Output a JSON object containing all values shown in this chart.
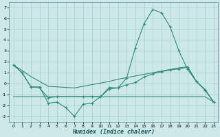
{
  "xlabel": "Humidex (Indice chaleur)",
  "x_values": [
    0,
    1,
    2,
    3,
    4,
    5,
    6,
    7,
    8,
    9,
    10,
    11,
    12,
    13,
    14,
    15,
    16,
    17,
    18,
    19,
    20,
    21,
    22,
    23
  ],
  "line1_y": [
    1.7,
    1.0,
    -0.3,
    -0.3,
    -1.8,
    -1.7,
    -2.2,
    -3.0,
    -1.9,
    -1.8,
    -1.2,
    -0.35,
    -0.4,
    0.5,
    3.3,
    5.5,
    6.8,
    6.5,
    5.2,
    3.0,
    1.3,
    0.2,
    -0.6,
    -1.7
  ],
  "line2_x": [
    0,
    1,
    2,
    3,
    4,
    5,
    8,
    9,
    10,
    11,
    12,
    13,
    14,
    15,
    16,
    17,
    18,
    19,
    20,
    21,
    22,
    23
  ],
  "line2_y": [
    1.7,
    1.0,
    -0.3,
    -0.4,
    -1.3,
    -1.2,
    -1.2,
    -1.2,
    -1.2,
    -0.5,
    -0.4,
    -0.1,
    0.1,
    0.6,
    0.9,
    1.1,
    1.25,
    1.35,
    1.5,
    0.2,
    -0.55,
    -1.7
  ],
  "line3_x": [
    0,
    1,
    2,
    3,
    4,
    5,
    6,
    7,
    8,
    9,
    10,
    11,
    12,
    13,
    14,
    15,
    16,
    17,
    18,
    19,
    20,
    21,
    22,
    23
  ],
  "line3_y": [
    -1.2,
    -1.2,
    -1.2,
    -1.2,
    -1.2,
    -1.2,
    -1.2,
    -1.2,
    -1.2,
    -1.2,
    -1.2,
    -1.2,
    -1.2,
    -1.2,
    -1.2,
    -1.2,
    -1.2,
    -1.2,
    -1.2,
    -1.2,
    -1.2,
    -1.2,
    -1.2,
    -1.7
  ],
  "line4_x": [
    0,
    1,
    2,
    3,
    4,
    5,
    6,
    7,
    8,
    9,
    10,
    11,
    12,
    13,
    14,
    15,
    16,
    17,
    18,
    19,
    20,
    21,
    22,
    23
  ],
  "line4_y": [
    1.7,
    1.2,
    0.65,
    0.2,
    -0.25,
    -0.3,
    -0.35,
    -0.4,
    -0.25,
    -0.1,
    0.05,
    0.2,
    0.4,
    0.55,
    0.7,
    0.85,
    1.0,
    1.15,
    1.3,
    1.45,
    1.55,
    0.2,
    -0.55,
    -1.7
  ],
  "line_color": "#2e8b74",
  "bg_color": "#cce8e8",
  "grid_color": "#aacccc",
  "ylim": [
    -3.5,
    7.5
  ],
  "xlim": [
    -0.5,
    23.5
  ],
  "yticks": [
    -3,
    -2,
    -1,
    0,
    1,
    2,
    3,
    4,
    5,
    6,
    7
  ],
  "xticks": [
    0,
    1,
    2,
    3,
    4,
    5,
    6,
    7,
    8,
    9,
    10,
    11,
    12,
    13,
    14,
    15,
    16,
    17,
    18,
    19,
    20,
    21,
    22,
    23
  ]
}
